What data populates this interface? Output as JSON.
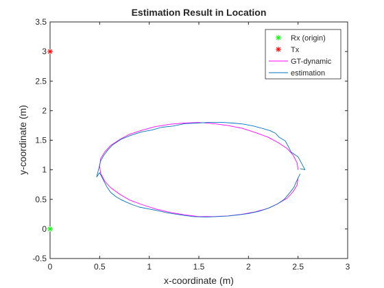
{
  "chart_data": {
    "type": "line",
    "title": "Estimation Result in Location",
    "xlabel": "x-coordinate (m)",
    "ylabel": "y-coordinate (m)",
    "xlim": [
      0,
      3
    ],
    "ylim": [
      -0.5,
      3.5
    ],
    "xticks": [
      0,
      0.5,
      1,
      1.5,
      2,
      2.5,
      3
    ],
    "yticks": [
      -0.5,
      0,
      0.5,
      1,
      1.5,
      2,
      2.5,
      3,
      3.5
    ],
    "xtick_labels": [
      "0",
      "0.5",
      "1",
      "1.5",
      "2",
      "2.5",
      "3"
    ],
    "ytick_labels": [
      "-0.5",
      "0",
      "0.5",
      "1",
      "1.5",
      "2",
      "2.5",
      "3",
      "3.5"
    ],
    "grid": false,
    "legend_position": "top-right",
    "series": [
      {
        "name": "Rx (origin)",
        "type": "marker",
        "marker": "asterisk",
        "color": "#00ff00",
        "x": [
          0
        ],
        "y": [
          0
        ]
      },
      {
        "name": "Tx",
        "type": "marker",
        "marker": "asterisk",
        "color": "#ff0000",
        "x": [
          0
        ],
        "y": [
          3
        ]
      },
      {
        "name": "GT-dynamic",
        "type": "line",
        "color": "#ff00ff",
        "x": [
          2.5,
          2.49,
          2.45,
          2.39,
          2.3,
          2.2,
          2.07,
          1.94,
          1.79,
          1.65,
          1.5,
          1.35,
          1.21,
          1.06,
          0.93,
          0.8,
          0.7,
          0.61,
          0.55,
          0.51,
          0.5,
          0.51,
          0.55,
          0.61,
          0.7,
          0.8,
          0.93,
          1.06,
          1.21,
          1.35,
          1.5,
          1.65,
          1.79,
          1.94,
          2.07,
          2.2,
          2.3,
          2.39,
          2.45,
          2.49,
          2.5
        ],
        "y": [
          1.0,
          1.12,
          1.25,
          1.36,
          1.46,
          1.55,
          1.63,
          1.7,
          1.75,
          1.78,
          1.8,
          1.79,
          1.77,
          1.73,
          1.67,
          1.6,
          1.51,
          1.41,
          1.3,
          1.19,
          1.06,
          0.94,
          0.81,
          0.7,
          0.59,
          0.49,
          0.41,
          0.34,
          0.28,
          0.24,
          0.21,
          0.21,
          0.22,
          0.25,
          0.29,
          0.35,
          0.43,
          0.52,
          0.63,
          0.74,
          0.87
        ]
      },
      {
        "name": "estimation",
        "type": "line",
        "color": "#0072bd",
        "x": [
          2.52,
          2.57,
          2.5,
          2.43,
          2.4,
          2.37,
          2.31,
          2.27,
          2.22,
          2.14,
          2.05,
          1.96,
          1.85,
          1.74,
          1.6,
          1.47,
          1.36,
          1.24,
          1.13,
          1.02,
          0.92,
          0.81,
          0.72,
          0.63,
          0.58,
          0.54,
          0.51,
          0.47,
          0.5,
          0.53,
          0.57,
          0.61,
          0.66,
          0.71,
          0.76,
          0.83,
          0.9,
          0.99,
          1.08,
          1.19,
          1.31,
          1.44,
          1.57,
          1.69,
          1.8,
          1.91,
          2.0,
          2.11,
          2.2,
          2.29,
          2.36,
          2.39,
          2.43,
          2.46,
          2.48,
          2.5,
          2.52
        ],
        "y": [
          1.02,
          1.0,
          1.22,
          1.3,
          1.4,
          1.49,
          1.55,
          1.62,
          1.66,
          1.7,
          1.74,
          1.77,
          1.79,
          1.8,
          1.8,
          1.79,
          1.78,
          1.74,
          1.72,
          1.67,
          1.64,
          1.58,
          1.52,
          1.42,
          1.33,
          1.24,
          1.15,
          0.88,
          0.95,
          0.85,
          0.72,
          0.62,
          0.55,
          0.5,
          0.46,
          0.41,
          0.37,
          0.34,
          0.31,
          0.27,
          0.24,
          0.21,
          0.2,
          0.21,
          0.22,
          0.24,
          0.26,
          0.3,
          0.35,
          0.42,
          0.5,
          0.56,
          0.64,
          0.71,
          0.79,
          0.86,
          0.93
        ]
      }
    ]
  }
}
